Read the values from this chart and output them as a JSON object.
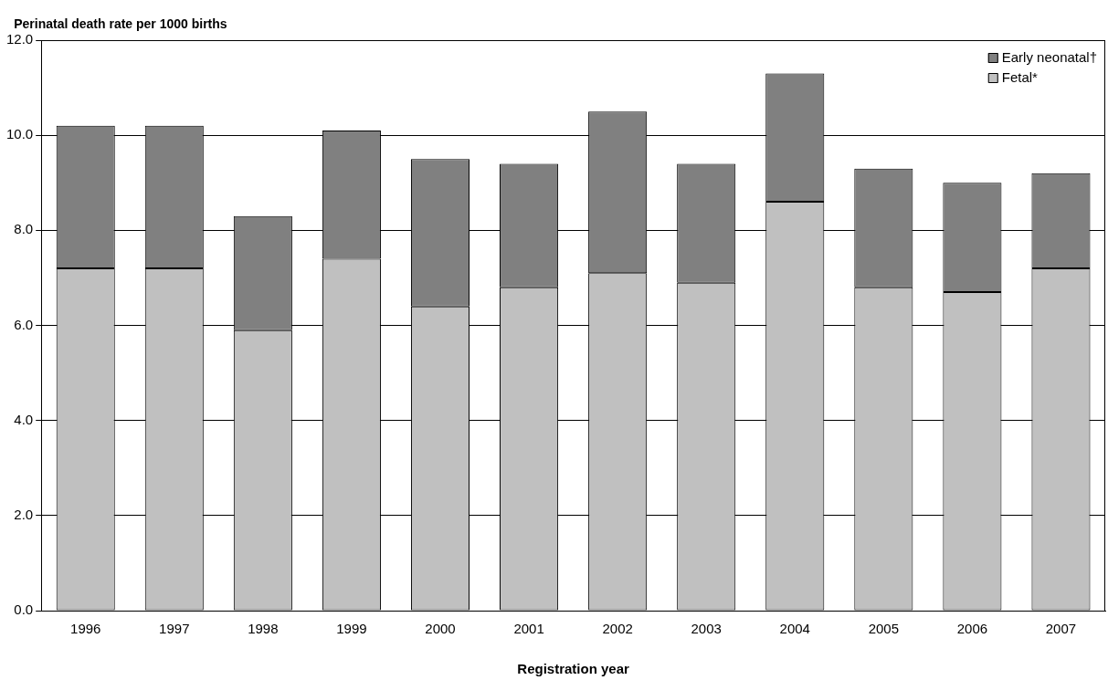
{
  "chart_data": {
    "type": "bar",
    "stacked": true,
    "ylabel": "Perinatal death rate per 1000 births",
    "xlabel": "Registration year",
    "categories": [
      "1996",
      "1997",
      "1998",
      "1999",
      "2000",
      "2001",
      "2002",
      "2003",
      "2004",
      "2005",
      "2006",
      "2007"
    ],
    "series": [
      {
        "name": "Fetal*",
        "color": "#c0c0c0",
        "values": [
          7.2,
          7.2,
          5.9,
          7.4,
          6.4,
          6.8,
          7.1,
          6.9,
          8.6,
          6.8,
          6.7,
          7.2
        ]
      },
      {
        "name": "Early neonatal†",
        "color": "#808080",
        "values": [
          3.0,
          3.0,
          2.4,
          2.7,
          3.1,
          2.6,
          3.4,
          2.5,
          2.7,
          2.5,
          2.3,
          2.0
        ]
      }
    ],
    "ylim": [
      0,
      12
    ],
    "yticks": [
      {
        "value": 0,
        "label": "0.0"
      },
      {
        "value": 2,
        "label": "2.0"
      },
      {
        "value": 4,
        "label": "4.0"
      },
      {
        "value": 6,
        "label": "6.0"
      },
      {
        "value": 8,
        "label": "8.0"
      },
      {
        "value": 10,
        "label": "10.0"
      },
      {
        "value": 12,
        "label": "12.0"
      }
    ],
    "grid": "y",
    "legend": "top right"
  }
}
